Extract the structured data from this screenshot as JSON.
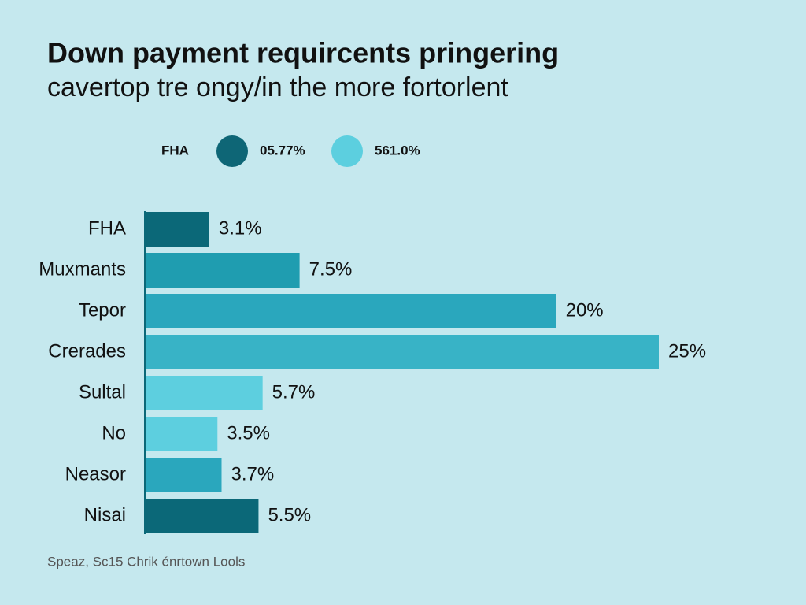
{
  "chart_data": {
    "type": "bar",
    "orientation": "horizontal",
    "title": [
      "Down payment requircents pringering",
      "cavertop tre ongy/in the more fortorlent"
    ],
    "legend": {
      "title": "FHA",
      "entries": [
        {
          "label": "05.77%",
          "color": "#0e6676"
        },
        {
          "label": "561.0%",
          "color": "#5ccfdf"
        }
      ]
    },
    "categories": [
      "FHA",
      "Muxmants",
      "Tepor",
      "Crerades",
      "Sultal",
      "No",
      "Neasor",
      "Nisai"
    ],
    "values": [
      3.1,
      7.5,
      20,
      25,
      5.7,
      3.5,
      3.7,
      5.5
    ],
    "value_labels": [
      "3.1%",
      "7.5%",
      "20%",
      "25%",
      "5.7%",
      "3.5%",
      "3.7%",
      "5.5%"
    ],
    "colors": [
      "#0b6878",
      "#1f9db0",
      "#2aa7bd",
      "#38b3c6",
      "#5dcfdf",
      "#5dcfdf",
      "#2aa7bd",
      "#0b6878"
    ],
    "source": "Speaz, Sc15  Chrik énrtown Lools"
  }
}
